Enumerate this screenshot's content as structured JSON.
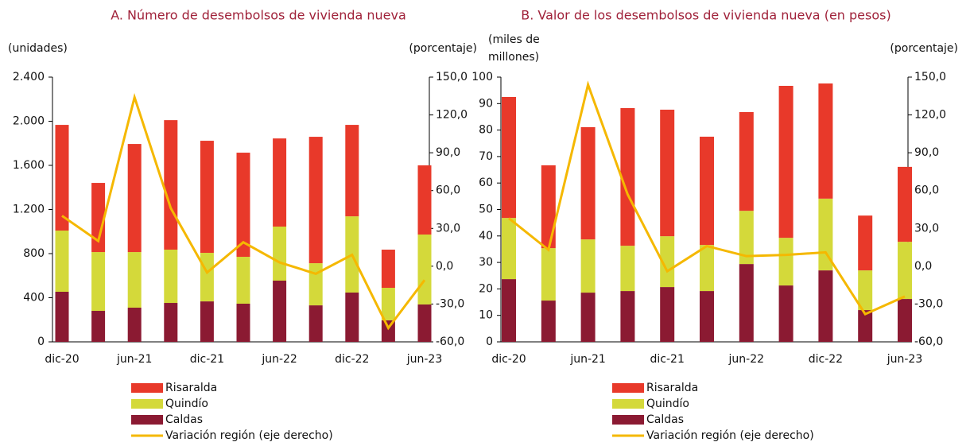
{
  "chart_data": [
    {
      "type": "bar",
      "title": "A. Número de desembolsos de vivienda nueva",
      "y_label": "(unidades)",
      "y2_label": "(porcentaje)",
      "categories": [
        "dic-20",
        null,
        "jun-21",
        null,
        "dic-21",
        null,
        "jun-22",
        null,
        "dic-22",
        null,
        "jun-23"
      ],
      "series": [
        {
          "name": "Risaralda",
          "color": "#e8392a",
          "values": [
            958,
            627,
            980,
            1174,
            1016,
            944,
            799,
            1146,
            829,
            346,
            627
          ]
        },
        {
          "name": "Quindío",
          "color": "#d4d93a",
          "values": [
            555,
            533,
            504,
            483,
            440,
            425,
            490,
            382,
            691,
            295,
            634
          ]
        },
        {
          "name": "Caldas",
          "color": "#8b1a32",
          "values": [
            454,
            281,
            310,
            353,
            367,
            346,
            555,
            331,
            447,
            195,
            339
          ]
        },
        {
          "name": "Variación región (eje derecho)",
          "color": "#f5b800",
          "axis": "y2",
          "values": [
            40,
            20,
            134,
            46,
            -5,
            19,
            3,
            -6,
            9,
            -49,
            -11
          ]
        }
      ],
      "ylim": [
        0,
        2400
      ],
      "yticks": [
        0,
        400,
        800,
        {
          "value": 1200,
          "label": "1.200"
        },
        {
          "value": 1600,
          "label": "1.600"
        },
        {
          "value": 2000,
          "label": "2.000"
        },
        {
          "value": 2400,
          "label": "2.400"
        }
      ],
      "y2lim": [
        -60,
        150
      ],
      "y2ticks": [
        {
          "value": -60,
          "label": "-60,0"
        },
        {
          "value": -30,
          "label": "-30,0"
        },
        {
          "value": 0,
          "label": "0,0"
        },
        {
          "value": 30,
          "label": "30,0"
        },
        {
          "value": 60,
          "label": "60,0"
        },
        {
          "value": 90,
          "label": "90,0"
        },
        {
          "value": 120,
          "label": "120,0"
        },
        {
          "value": 150,
          "label": "150,0"
        }
      ]
    },
    {
      "type": "bar",
      "title": "B. Valor de los desembolsos de vivienda nueva (en pesos)",
      "y_label": [
        "(miles de",
        "millones)"
      ],
      "y2_label": "(porcentaje)",
      "categories": [
        "dic-20",
        null,
        "jun-21",
        null,
        "dic-21",
        null,
        "jun-22",
        null,
        "dic-22",
        null,
        "jun-23"
      ],
      "series": [
        {
          "name": "Risaralda",
          "color": "#e8392a",
          "values": [
            45.7,
            31.3,
            42.4,
            52.0,
            47.8,
            40.9,
            37.3,
            57.4,
            43.5,
            20.7,
            28.3
          ]
        },
        {
          "name": "Quindío",
          "color": "#d4d93a",
          "values": [
            23.1,
            19.8,
            20.1,
            17.1,
            19.2,
            17.4,
            20.1,
            18.0,
            27.1,
            15.0,
            21.6
          ]
        },
        {
          "name": "Caldas",
          "color": "#8b1a32",
          "values": [
            23.7,
            15.6,
            18.6,
            19.2,
            20.7,
            19.2,
            29.4,
            21.3,
            27.0,
            12.0,
            16.2
          ]
        },
        {
          "name": "Variación región (eje derecho)",
          "color": "#f5b800",
          "axis": "y2",
          "values": [
            38,
            13,
            144,
            57,
            -4,
            16,
            8,
            9,
            11,
            -38,
            -24
          ]
        }
      ],
      "ylim": [
        0,
        100
      ],
      "yticks": [
        0,
        10,
        20,
        30,
        40,
        50,
        60,
        70,
        80,
        90,
        100
      ],
      "y2lim": [
        -60,
        150
      ],
      "y2ticks": [
        {
          "value": -60,
          "label": "-60,0"
        },
        {
          "value": -30,
          "label": "-30,0"
        },
        {
          "value": 0,
          "label": "0,0"
        },
        {
          "value": 30,
          "label": "30,0"
        },
        {
          "value": 60,
          "label": "60,0"
        },
        {
          "value": 90,
          "label": "90,0"
        },
        {
          "value": 120,
          "label": "120,0"
        },
        {
          "value": 150,
          "label": "150,0"
        }
      ]
    }
  ]
}
